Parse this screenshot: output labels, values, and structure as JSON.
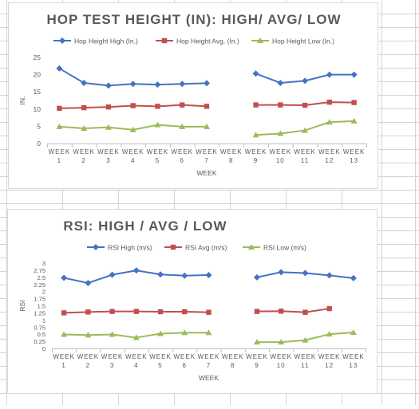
{
  "colors": {
    "high": "#4472c4",
    "avg": "#c0504d",
    "low": "#9bbb59",
    "axis": "#bfbfbf",
    "text": "#595959",
    "grid_cell": "#d4d4d4"
  },
  "chart_data": [
    {
      "type": "line",
      "title": "HOP TEST HEIGHT (IN): HIGH/ AVG/ LOW",
      "xlabel": "WEEK",
      "ylabel": "IN.",
      "ylim": [
        0,
        25
      ],
      "yticks": [
        "0",
        "5",
        "10",
        "15",
        "20",
        "25"
      ],
      "categories": [
        "WEEK 1",
        "WEEK 2",
        "WEEK 3",
        "WEEK 4",
        "WEEK 5",
        "WEEK 6",
        "WEEK 7",
        "WEEK 8",
        "WEEK 9",
        "WEEK 10",
        "WEEK 11",
        "WEEK 12",
        "WEEK 13"
      ],
      "legend_position": "top",
      "grid": false,
      "series": [
        {
          "name": "Hop Height High (In.)",
          "marker": "diamond",
          "values": [
            21.8,
            17.6,
            16.8,
            17.3,
            17.1,
            17.3,
            17.5,
            null,
            20.3,
            17.6,
            18.2,
            20.0,
            20.0
          ]
        },
        {
          "name": "Hop Height Avg. (In.)",
          "marker": "square",
          "values": [
            10.2,
            10.4,
            10.6,
            11.0,
            10.8,
            11.2,
            10.8,
            null,
            11.2,
            11.2,
            11.1,
            12.0,
            11.9
          ]
        },
        {
          "name": "Hop Height Low (In.)",
          "marker": "triangle",
          "values": [
            4.9,
            4.4,
            4.7,
            4.0,
            5.4,
            4.9,
            4.9,
            null,
            2.5,
            2.9,
            3.8,
            6.2,
            6.5
          ]
        }
      ]
    },
    {
      "type": "line",
      "title": "RSI: HIGH / AVG / LOW",
      "xlabel": "WEEK",
      "ylabel": "RSI",
      "ylim": [
        0,
        3
      ],
      "yticks": [
        "0",
        "0.25",
        "0.5",
        "0.75",
        "1",
        "1.25",
        "1.5",
        "1.75",
        "2",
        "2.25",
        "2.5",
        "2.75",
        "3"
      ],
      "categories": [
        "WEEK 1",
        "WEEK 2",
        "WEEK 3",
        "WEEK 4",
        "WEEK 5",
        "WEEK 6",
        "WEEK 7",
        "WEEK 8",
        "WEEK 9",
        "WEEK 10",
        "WEEK 11",
        "WEEK 12",
        "WEEK 13"
      ],
      "legend_position": "top",
      "grid": false,
      "series": [
        {
          "name": "RSI High (m/s)",
          "marker": "diamond",
          "values": [
            2.48,
            2.3,
            2.59,
            2.74,
            2.6,
            2.56,
            2.58,
            null,
            2.5,
            2.68,
            2.65,
            2.57,
            2.47
          ]
        },
        {
          "name": "RSI Avg (m/s)",
          "marker": "square",
          "values": [
            1.25,
            1.28,
            1.3,
            1.3,
            1.29,
            1.29,
            1.27,
            null,
            1.3,
            1.31,
            1.27,
            1.4,
            null
          ]
        },
        {
          "name": "RSI Low (m/s)",
          "marker": "triangle",
          "values": [
            0.49,
            0.47,
            0.49,
            0.38,
            0.52,
            0.55,
            0.55,
            null,
            0.22,
            0.22,
            0.29,
            0.5,
            0.56
          ]
        }
      ]
    }
  ]
}
